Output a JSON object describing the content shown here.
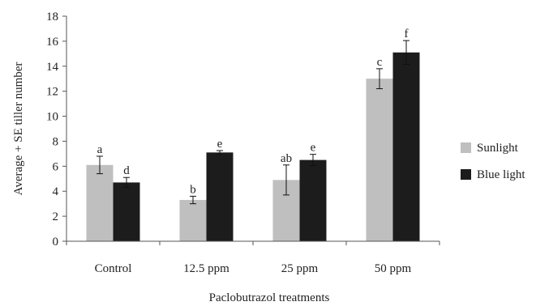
{
  "chart_data": {
    "type": "bar",
    "title": "",
    "xlabel": "Paclobutrazol treatments",
    "ylabel": "Average + SE tiller number",
    "ylim": [
      0,
      18
    ],
    "yticks": [
      0,
      2,
      4,
      6,
      8,
      10,
      12,
      14,
      16,
      18
    ],
    "grid": false,
    "legend_position": "right",
    "categories": [
      "Control",
      "12.5 ppm",
      "25 ppm",
      "50 ppm"
    ],
    "series": [
      {
        "name": "Sunlight",
        "color": "#bfbfbf",
        "values": [
          6.1,
          3.3,
          4.9,
          13.0
        ],
        "errors": [
          0.7,
          0.3,
          1.2,
          0.8
        ],
        "labels": [
          "a",
          "b",
          "ab",
          "c"
        ]
      },
      {
        "name": "Blue light",
        "color": "#1c1c1c",
        "values": [
          4.7,
          7.1,
          6.5,
          15.1
        ],
        "errors": [
          0.4,
          0.15,
          0.45,
          0.95
        ],
        "labels": [
          "d",
          "e",
          "e",
          "f"
        ]
      }
    ]
  }
}
